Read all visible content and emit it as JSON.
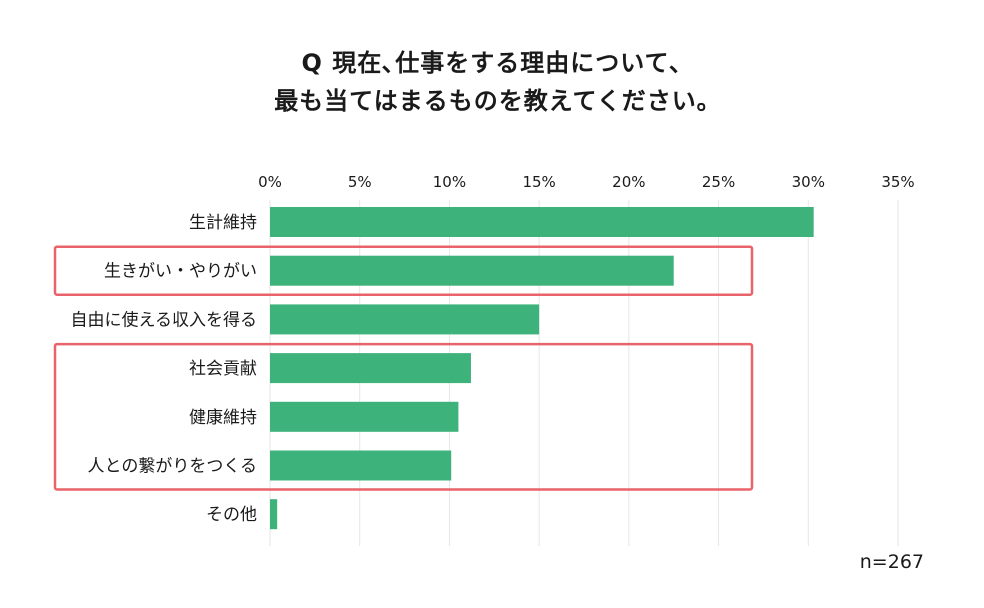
{
  "title": {
    "line1": "Q 現在､仕事をする理由について､",
    "line2": "最も当てはまるものを教えてください｡"
  },
  "note": "n=267",
  "colors": {
    "bar": "#3db37b",
    "highlight": "#e8636a",
    "grid": "#e6e6e6"
  },
  "chart_data": {
    "type": "bar",
    "orientation": "horizontal",
    "categories": [
      "生計維持",
      "生きがい・やりがい",
      "自由に使える収入を得る",
      "社会貢献",
      "健康維持",
      "人との繋がりをつくる",
      "その他"
    ],
    "values": [
      30.3,
      22.5,
      15.0,
      11.2,
      10.5,
      10.1,
      0.4
    ],
    "unit": "%",
    "xlim": [
      0,
      35
    ],
    "xticks": [
      "0%",
      "5%",
      "10%",
      "15%",
      "20%",
      "25%",
      "30%",
      "35%"
    ],
    "grid": true,
    "highlight_groups": [
      [
        1
      ],
      [
        3,
        4,
        5
      ]
    ]
  }
}
